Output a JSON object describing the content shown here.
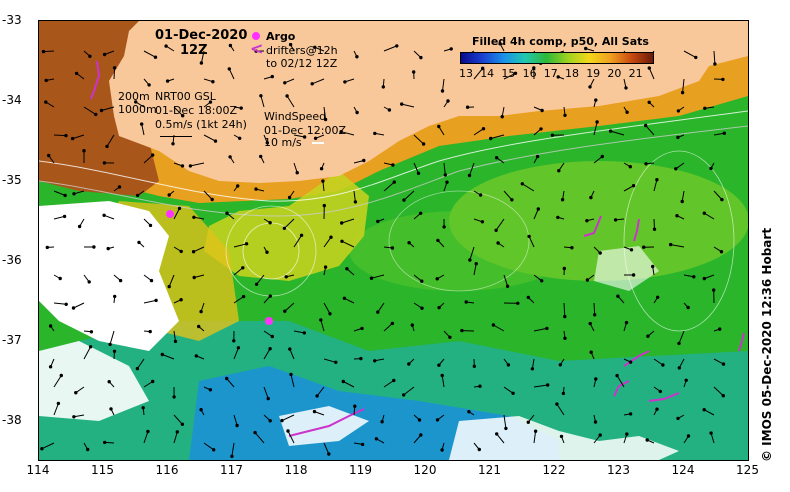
{
  "map": {
    "date": "01-Dec-2020",
    "time": "12Z",
    "contours": [
      "200m",
      "1000m"
    ],
    "current_source": "NRT00 GSL",
    "current_time": "01-Dec 18:00Z",
    "current_scale": "0.5m/s (1kt 24h)",
    "wind_title": "WindSpeed",
    "wind_time": "01-Dec 12:00Z",
    "wind_scale": "10 m/s",
    "argo_label": "Argo",
    "drifters_label": "drifters@12h",
    "drifters_sub": "to 02/12 12Z",
    "credit": "© IMOS 05-Dec-2020 12:36 Hobart",
    "colors": {
      "land": "#f9c89a",
      "argo": "#ff33ff",
      "drifter": "#cc33cc"
    }
  },
  "colorbar": {
    "title": "Filled 4h comp, p50, All Sats",
    "ticks": [
      "13",
      "14",
      "15",
      "16",
      "17",
      "18",
      "19",
      "20",
      "21"
    ],
    "colors": [
      "#0a0a8c",
      "#1a3fd0",
      "#1a90e8",
      "#22c8b0",
      "#2db83a",
      "#9dd21f",
      "#f2d81a",
      "#f0a020",
      "#c84a10",
      "#6b1a0a"
    ]
  },
  "axes": {
    "x_ticks": [
      "114",
      "115",
      "116",
      "117",
      "118",
      "119",
      "120",
      "121",
      "122",
      "123",
      "124",
      "125"
    ],
    "y_ticks": [
      "-33",
      "-34",
      "-35",
      "-36",
      "-37",
      "-38"
    ]
  }
}
